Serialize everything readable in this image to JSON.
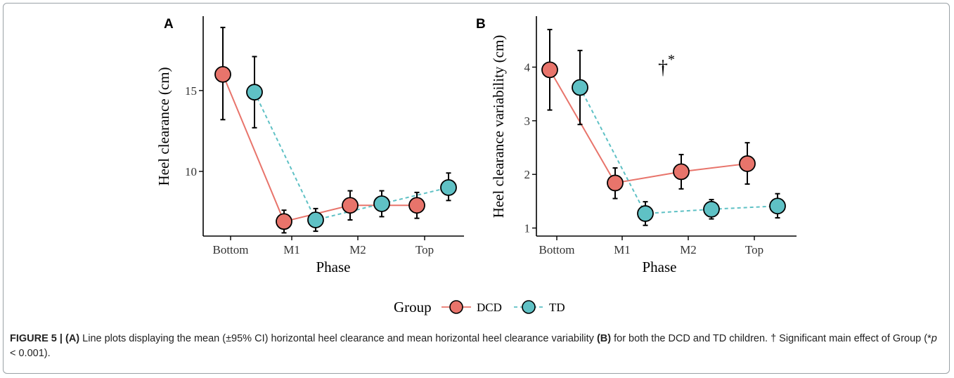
{
  "colors": {
    "dcd": "#E8746B",
    "td": "#5FC1C5",
    "axis": "#000000"
  },
  "legend": {
    "title": "Group",
    "items": [
      "DCD",
      "TD"
    ]
  },
  "chart_data": [
    {
      "type": "line",
      "panel": "A",
      "xlabel": "Phase",
      "ylabel": "Heel clearance (cm)",
      "categories": [
        "Bottom",
        "M1",
        "M2",
        "Top"
      ],
      "ylim": [
        6,
        19.6
      ],
      "yticks": [
        10,
        15
      ],
      "grid": false,
      "series": [
        {
          "name": "DCD",
          "style": "solid",
          "values": [
            16.0,
            6.9,
            7.9,
            7.9
          ],
          "lower": [
            13.2,
            6.2,
            7.0,
            7.1
          ],
          "upper": [
            18.9,
            7.6,
            8.8,
            8.7
          ]
        },
        {
          "name": "TD",
          "style": "dashed",
          "values": [
            14.9,
            7.0,
            8.0,
            9.0
          ],
          "lower": [
            12.7,
            6.3,
            7.2,
            8.2
          ],
          "upper": [
            17.1,
            7.7,
            8.8,
            9.9
          ]
        }
      ]
    },
    {
      "type": "line",
      "panel": "B",
      "xlabel": "Phase",
      "ylabel": "Heel clearance variability (cm)",
      "categories": [
        "Bottom",
        "M1",
        "M2",
        "Top"
      ],
      "ylim": [
        0.85,
        4.95
      ],
      "yticks": [
        1,
        2,
        3,
        4
      ],
      "grid": false,
      "annotation": "†*",
      "series": [
        {
          "name": "DCD",
          "style": "solid",
          "values": [
            3.95,
            1.84,
            2.05,
            2.2
          ],
          "lower": [
            3.2,
            1.55,
            1.73,
            1.82
          ],
          "upper": [
            4.7,
            2.12,
            2.37,
            2.59
          ]
        },
        {
          "name": "TD",
          "style": "dashed",
          "values": [
            3.62,
            1.27,
            1.35,
            1.41
          ],
          "lower": [
            2.93,
            1.05,
            1.17,
            1.19
          ],
          "upper": [
            4.31,
            1.49,
            1.53,
            1.64
          ]
        }
      ]
    }
  ],
  "caption": {
    "lead": "FIGURE 5 |",
    "a_tag": "(A)",
    "text1": " Line plots displaying the mean (±95% CI) horizontal heel clearance and mean horizontal heel clearance variability ",
    "b_tag": "(B)",
    "text2": " for both the DCD and TD children. † Significant main effect of Group (*",
    "p": "p",
    "text3": " < 0.001)."
  }
}
